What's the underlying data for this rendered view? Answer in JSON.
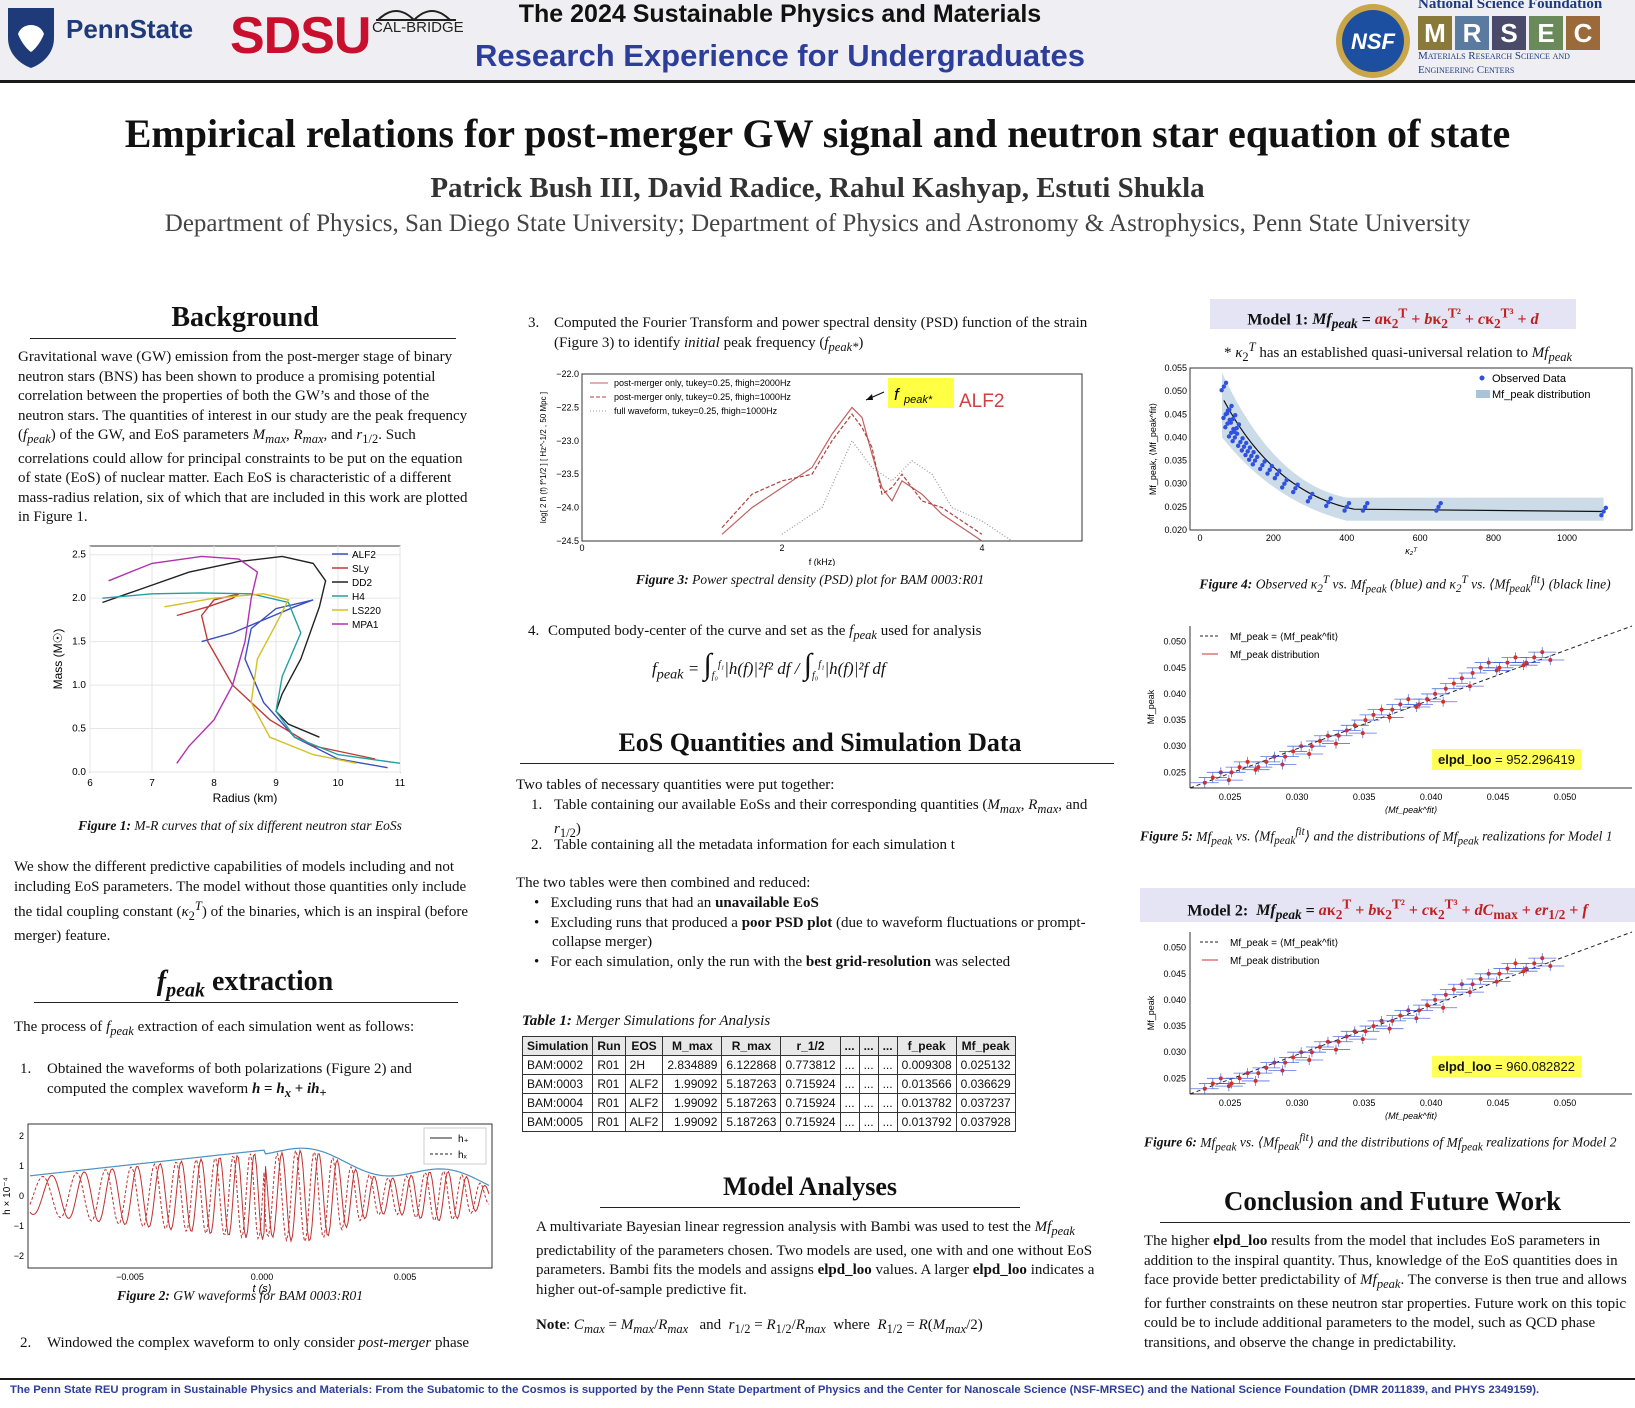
{
  "header": {
    "pennstate_logo_text": "PennState",
    "sdsu_logo_text": "SDSU",
    "calbridge_text": "CAL-BRIDGE",
    "title_line1": "The 2024 Sustainable Physics and Materials",
    "title_line2": "Research Experience for Undergraduates",
    "nsf_text": "NSF",
    "nsf_name": "National Science Foundation",
    "mrsec_letters": [
      "M",
      "R",
      "S",
      "E",
      "C"
    ],
    "mrsec_sub1": "Materials Research Science and",
    "mrsec_sub2": "Engineering Centers"
  },
  "poster": {
    "title": "Empirical relations for post-merger GW signal and neutron star equation of state",
    "authors": "Patrick Bush III, David Radice, Rahul Kashyap, Estuti Shukla",
    "affiliation": "Department of Physics, San Diego State University; Department of Physics and Astronomy & Astrophysics, Penn State University"
  },
  "background": {
    "heading": "Background",
    "para1_a": "Gravitational wave (GW) emission from the post-merger stage of binary neutron stars (BNS) has been shown to produce a promising potential correlation between the properties of both the GW’s and those of the neutron stars. The quantities of interest in our study are the peak frequency (",
    "para1_b": ") of the GW, and EoS parameters ",
    "para1_c": ", and ",
    "para1_d": ". Such correlations could allow for principal constraints to be put on the equation of state (EoS) of nuclear matter. Each EoS is characteristic of a different mass-radius relation, six of which that are included in this work are plotted in Figure 1.",
    "fig1_caption_label": "Figure 1:",
    "fig1_caption": " M-R curves that of six different neutron star EoSs",
    "para2_a": "We show the different predictive capabilities of models including and not including EoS parameters. The model without those quantities only include the tidal coupling constant (",
    "para2_b": ") of the binaries, which is an inspiral (before merger) feature."
  },
  "fpeak_section": {
    "heading_suffix": " extraction",
    "intro_a": "The process of ",
    "intro_b": " extraction of each simulation went as follows:",
    "step1_num": "1.",
    "step1_a": "Obtained the waveforms of both polarizations (Figure 2) and computed the complex waveform ",
    "fig2_caption_label": "Figure 2:",
    "fig2_caption": " GW waveforms for BAM 0003:R01",
    "step2_num": "2.",
    "step2_a": "Windowed the complex waveform to only consider ",
    "step2_b": "post-merger",
    "step2_c": " phase",
    "step3_num": "3.",
    "step3_a": "Computed the Fourier Transform and power spectral density (PSD) function of the strain (Figure 3) to identify ",
    "step3_b": "initial",
    "step3_c": " peak frequency (",
    "fig3_caption_label": "Figure 3:",
    "fig3_caption": " Power spectral density (PSD) plot for BAM 0003:R01",
    "step4_num": "4.",
    "step4_a": "Computed body-center of the curve and set as the ",
    "step4_b": " used for analysis"
  },
  "eos_section": {
    "heading": "EoS Quantities and Simulation Data",
    "intro": "Two tables of necessary quantities were put together:",
    "item1_num": "1.",
    "item1_a": "Table containing our available EoSs and their corresponding quantities (",
    "item2_num": "2.",
    "item2": "Table containing all the metadata information for each simulation t",
    "combined": "The two tables were then combined and reduced:",
    "bullet1_a": "Excluding runs that had an ",
    "bullet1_b": "unavailable EoS",
    "bullet2_a": "Excluding runs that produced a ",
    "bullet2_b": "poor PSD plot",
    "bullet2_c": " (due to waveform fluctuations or prompt-collapse merger)",
    "bullet3_a": "For each simulation, only the run with the ",
    "bullet3_b": "best grid-resolution",
    "bullet3_c": " was selected",
    "table_caption_label": "Table 1:",
    "table_caption": " Merger Simulations for Analysis",
    "table_headers": [
      "Simulation",
      "Run",
      "EOS",
      "M_max",
      "R_max",
      "r_1/2",
      "...",
      "...",
      "...",
      "f_peak",
      "Mf_peak"
    ],
    "table_rows": [
      [
        "BAM:0002",
        "R01",
        "2H",
        "2.834889",
        "6.122868",
        "0.773812",
        "...",
        "...",
        "...",
        "0.009308",
        "0.025132"
      ],
      [
        "BAM:0003",
        "R01",
        "ALF2",
        "1.99092",
        "5.187263",
        "0.715924",
        "...",
        "...",
        "...",
        "0.013566",
        "0.036629"
      ],
      [
        "BAM:0004",
        "R01",
        "ALF2",
        "1.99092",
        "5.187263",
        "0.715924",
        "...",
        "...",
        "...",
        "0.013782",
        "0.037237"
      ],
      [
        "BAM:0005",
        "R01",
        "ALF2",
        "1.99092",
        "5.187263",
        "0.715924",
        "...",
        "...",
        "...",
        "0.013792",
        "0.037928"
      ]
    ]
  },
  "model_analyses": {
    "heading": "Model Analyses",
    "para_a": "A multivariate Bayesian linear regression analysis with Bambi was used to test the ",
    "para_b": " predictability of the parameters chosen. Two models are used, one with and one without EoS parameters. Bambi fits the models and assigns ",
    "para_bold1": "elpd_loo",
    "para_c": " values. A larger ",
    "para_bold2": "elpd_loo",
    "para_d": " indicates a higher out-of-sample predictive fit.",
    "note_label": "Note",
    "note_and": "and",
    "note_where": "where"
  },
  "model1": {
    "label": "Model 1:",
    "note": " has an established quasi-universal relation to ",
    "fig4_caption_label": "Figure 4:",
    "fig4_caption_a": " Observed ",
    "fig4_caption_b": " (blue) and ",
    "fig4_caption_c": " (black line)",
    "fig5_caption_label": "Figure 5:",
    "fig5_caption_a": " and the distributions of ",
    "fig5_caption_b": " realizations for Model 1",
    "elpd_label": "elpd_loo",
    "elpd_value": "= 952.296419"
  },
  "model2": {
    "label": "Model 2:",
    "fig6_caption_label": "Figure 6:",
    "fig6_caption_a": " and the distributions of ",
    "fig6_caption_b": " realizations for Model 2",
    "elpd_label": "elpd_loo",
    "elpd_value": "= 960.082822"
  },
  "conclusion": {
    "heading": "Conclusion and Future Work",
    "para_a": "The higher ",
    "para_bold": "elpd_loo",
    "para_b": " results from the model that includes EoS parameters in addition to the inspiral quantity. Thus, knowledge of the EoS quantities does in face provide better predictability of ",
    "para_c": ". The converse is then true and allows for further constraints on these neutron star properties. Future work on this topic could be to include additional parameters to the model, such as QCD phase transitions, and observe the change in predictability."
  },
  "footer": {
    "text": "The Penn State REU program in Sustainable Physics and Materials: From the Subatomic to the Cosmos is supported by the Penn State Department of Physics and the Center for Nanoscale Science (NSF-MRSEC) and the National Science Foundation (DMR 2011839, and PHYS 2349159)."
  },
  "chart_data": [
    {
      "id": "figure1",
      "type": "line",
      "xlabel": "Radius (km)",
      "ylabel": "Mass (M☉)",
      "xlim": [
        6,
        11
      ],
      "ylim": [
        0,
        2.6
      ],
      "xticks": [
        "6",
        "7",
        "8",
        "9",
        "10",
        "11"
      ],
      "yticks": [
        "0.0",
        "0.5",
        "1.0",
        "1.5",
        "2.0",
        "2.5"
      ],
      "legend": "top-right",
      "series": [
        {
          "name": "ALF2",
          "color": "#3a4fc0",
          "x": [
            10.8,
            10.0,
            9.3,
            8.8,
            8.5,
            8.6,
            9.0,
            9.6,
            9.3,
            8.8,
            8.3,
            7.8
          ],
          "y": [
            0.05,
            0.15,
            0.4,
            0.8,
            1.3,
            1.65,
            1.88,
            1.98,
            1.9,
            1.75,
            1.6,
            1.5
          ]
        },
        {
          "name": "SLy",
          "color": "#c03a3a",
          "x": [
            10.6,
            9.6,
            8.9,
            8.3,
            7.9,
            7.8,
            8.0,
            8.4,
            8.3,
            7.9,
            7.4
          ],
          "y": [
            0.15,
            0.3,
            0.6,
            1.0,
            1.5,
            1.8,
            1.98,
            2.05,
            2.0,
            1.9,
            1.8
          ]
        },
        {
          "name": "DD2",
          "color": "#222222",
          "x": [
            9.7,
            9.2,
            9.0,
            9.1,
            9.4,
            9.7,
            9.8,
            9.6,
            9.1,
            8.4,
            7.6,
            6.8,
            6.2
          ],
          "y": [
            0.4,
            0.55,
            0.7,
            0.9,
            1.3,
            1.9,
            2.2,
            2.4,
            2.48,
            2.42,
            2.3,
            2.1,
            1.95
          ]
        },
        {
          "name": "H4",
          "color": "#22a0a0",
          "x": [
            11.0,
            10.0,
            9.3,
            9.0,
            9.1,
            9.4,
            9.2,
            8.6,
            7.8,
            7.0,
            6.2
          ],
          "y": [
            0.1,
            0.2,
            0.4,
            0.7,
            1.1,
            1.6,
            1.95,
            2.05,
            2.06,
            2.05,
            2.0
          ]
        },
        {
          "name": "LS220",
          "color": "#d4c020",
          "x": [
            10.3,
            9.6,
            8.9,
            8.6,
            8.7,
            9.0,
            9.2,
            8.8,
            8.0,
            7.2
          ],
          "y": [
            0.1,
            0.2,
            0.4,
            0.8,
            1.3,
            1.7,
            1.98,
            2.05,
            2.0,
            1.9
          ]
        },
        {
          "name": "MPA1",
          "color": "#b030b0",
          "x": [
            7.4,
            7.6,
            8.0,
            8.3,
            8.5,
            8.6,
            8.7,
            8.4,
            7.8,
            7.0,
            6.3
          ],
          "y": [
            0.1,
            0.3,
            0.6,
            1.0,
            1.5,
            2.0,
            2.3,
            2.45,
            2.48,
            2.4,
            2.2
          ]
        }
      ]
    },
    {
      "id": "figure2",
      "type": "line",
      "xlabel": "t (s)",
      "ylabel": "h × 10⁻⁴",
      "xticks": [
        "−0.005",
        "0.000",
        "0.005"
      ],
      "yticks": [
        "−2",
        "−1",
        "0",
        "1",
        "2"
      ],
      "legend": "top-right",
      "series": [
        {
          "name": "h₊",
          "color": "#c03030",
          "style": "solid"
        },
        {
          "name": "hₓ",
          "color": "#c03030",
          "style": "dashed"
        }
      ]
    },
    {
      "id": "figure3",
      "type": "line",
      "xlabel": "f (kHz)",
      "ylabel": "log[ 2 h̃ (f) f^1/2 ] [ Hz^-1/2 , 50 Mpc ]",
      "xticks": [
        "0",
        "2",
        "4"
      ],
      "yticks": [
        "−22.0",
        "−22.5",
        "−23.0",
        "−23.5",
        "−24.0",
        "−24.5"
      ],
      "ylim": [
        -24.5,
        -22.0
      ],
      "xlim": [
        0,
        5
      ],
      "legend": "top-left",
      "series": [
        {
          "name": "post-merger only, tukey=0.25, fhigh=2000Hz",
          "color": "#c06060",
          "x": [
            1.4,
            1.7,
            2.0,
            2.3,
            2.5,
            2.7,
            2.8,
            2.9,
            3.0,
            3.1,
            3.2,
            3.4,
            3.6,
            3.8,
            4.0
          ],
          "y": [
            -24.4,
            -24.0,
            -23.7,
            -23.4,
            -22.9,
            -22.5,
            -22.65,
            -23.2,
            -23.7,
            -23.9,
            -23.6,
            -23.8,
            -24.1,
            -24.3,
            -24.5
          ]
        },
        {
          "name": "post-merger only, tukey=0.25, fhigh=1000Hz",
          "color": "#b04040",
          "x": [
            1.4,
            1.7,
            2.0,
            2.3,
            2.5,
            2.7,
            2.8,
            2.9,
            3.0,
            3.1,
            3.2,
            3.4,
            3.6,
            3.8,
            4.0
          ],
          "y": [
            -24.3,
            -23.8,
            -23.6,
            -23.5,
            -23.0,
            -22.6,
            -22.8,
            -23.1,
            -23.8,
            -23.7,
            -23.5,
            -23.9,
            -24.0,
            -24.2,
            -24.4
          ]
        },
        {
          "name": "full waveform, tukey=0.25, fhigh=1000Hz",
          "color": "#999999",
          "x": [
            2.0,
            2.4,
            2.7,
            2.9,
            3.1,
            3.3,
            3.5,
            3.7,
            4.0,
            4.3
          ],
          "y": [
            -24.4,
            -24.0,
            -23.0,
            -23.4,
            -23.6,
            -23.3,
            -23.5,
            -24.0,
            -24.2,
            -24.5
          ]
        }
      ],
      "annotations": [
        "ALF2"
      ]
    },
    {
      "id": "figure4",
      "type": "scatter",
      "ylabel": "Mf_peak, ⟨Mf_peak^fit⟩",
      "xlim": [
        0,
        1150
      ],
      "ylim": [
        0.02,
        0.055
      ],
      "xticks": [
        "0",
        "200",
        "400",
        "600",
        "800",
        "1000"
      ],
      "yticks": [
        "0.020",
        "0.025",
        "0.030",
        "0.035",
        "0.040",
        "0.045",
        "0.050",
        "0.055"
      ],
      "legend": "top-right",
      "series": [
        {
          "name": "Observed Data",
          "color": "#3050e0",
          "x": [
            65,
            70,
            75,
            80,
            85,
            90,
            95,
            100,
            110,
            120,
            130,
            140,
            150,
            170,
            190,
            210,
            230,
            260,
            300,
            350,
            400,
            450,
            650,
            1100
          ],
          "y": [
            0.051,
            0.045,
            0.043,
            0.046,
            0.041,
            0.044,
            0.04,
            0.042,
            0.039,
            0.038,
            0.037,
            0.036,
            0.035,
            0.034,
            0.033,
            0.032,
            0.03,
            0.029,
            0.027,
            0.026,
            0.025,
            0.025,
            0.025,
            0.024
          ]
        }
      ]
    },
    {
      "id": "figure5",
      "type": "scatter",
      "ylabel": "Mf_peak",
      "xlim": [
        0.022,
        0.055
      ],
      "ylim": [
        0.022,
        0.053
      ],
      "xticks": [
        "0.025",
        "0.030",
        "0.035",
        "0.040",
        "0.045",
        "0.050"
      ],
      "yticks": [
        "0.025",
        "0.030",
        "0.035",
        "0.040",
        "0.045",
        "0.050"
      ],
      "legend": "top-left",
      "series": [
        {
          "name": "Mf_peak distribution",
          "color": "#d03030",
          "x": [
            0.024,
            0.026,
            0.028,
            0.03,
            0.032,
            0.034,
            0.036,
            0.038,
            0.04,
            0.042,
            0.044,
            0.046,
            0.048
          ],
          "y": [
            0.024,
            0.026,
            0.027,
            0.029,
            0.031,
            0.033,
            0.036,
            0.038,
            0.039,
            0.042,
            0.045,
            0.046,
            0.047
          ]
        }
      ]
    },
    {
      "id": "figure6",
      "type": "scatter",
      "ylabel": "Mf_peak",
      "xlim": [
        0.022,
        0.055
      ],
      "ylim": [
        0.022,
        0.053
      ],
      "xticks": [
        "0.025",
        "0.030",
        "0.035",
        "0.040",
        "0.045",
        "0.050"
      ],
      "yticks": [
        "0.025",
        "0.030",
        "0.035",
        "0.040",
        "0.045",
        "0.050"
      ],
      "legend": "top-left",
      "series": [
        {
          "name": "Mf_peak distribution",
          "color": "#d03030",
          "x": [
            0.024,
            0.026,
            0.028,
            0.03,
            0.032,
            0.034,
            0.036,
            0.038,
            0.04,
            0.042,
            0.044,
            0.046,
            0.048
          ],
          "y": [
            0.024,
            0.025,
            0.027,
            0.029,
            0.031,
            0.033,
            0.035,
            0.037,
            0.039,
            0.042,
            0.044,
            0.046,
            0.047
          ]
        }
      ]
    }
  ]
}
